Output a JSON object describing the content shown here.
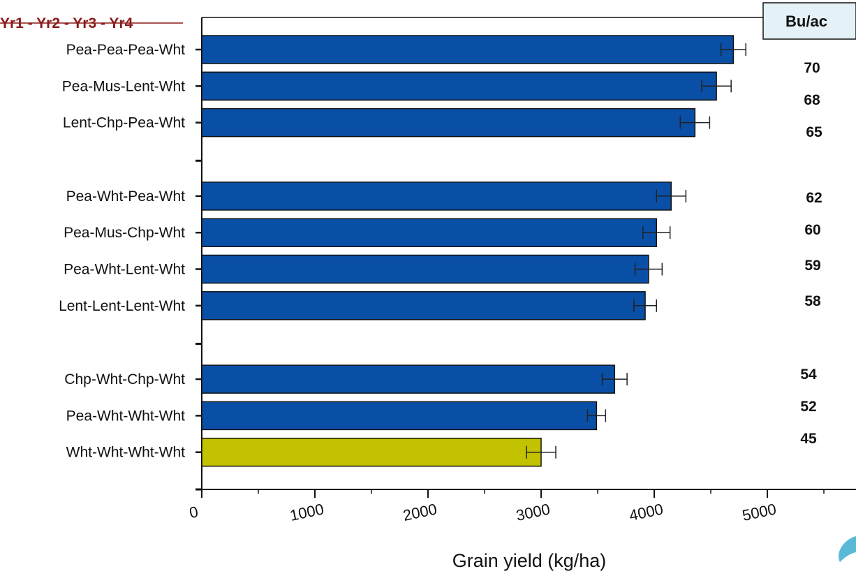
{
  "chart_data": {
    "type": "bar",
    "orientation": "horizontal",
    "header": "Yr1 - Yr2 - Yr3 - Yr4",
    "xlabel": "Grain yield (kg/ha)",
    "xlim": [
      0,
      5700
    ],
    "xticks": [
      0,
      1000,
      2000,
      3000,
      4000,
      5000
    ],
    "categories": [
      "Pea-Pea-Pea-Wht",
      "Pea-Mus-Lent-Wht",
      "Lent-Chp-Pea-Wht",
      "Pea-Wht-Pea-Wht",
      "Pea-Mus-Chp-Wht",
      "Pea-Wht-Lent-Wht",
      "Lent-Lent-Lent-Wht",
      "Chp-Wht-Chp-Wht",
      "Pea-Wht-Wht-Wht",
      "Wht-Wht-Wht-Wht"
    ],
    "groups": [
      0,
      0,
      0,
      1,
      1,
      1,
      1,
      2,
      2,
      2
    ],
    "values": [
      4700,
      4550,
      4360,
      4150,
      4020,
      3950,
      3920,
      3650,
      3490,
      3000
    ],
    "errors": [
      110,
      130,
      130,
      130,
      120,
      120,
      100,
      110,
      80,
      130
    ],
    "bar_colors": [
      "#0a4fa6",
      "#0a4fa6",
      "#0a4fa6",
      "#0a4fa6",
      "#0a4fa6",
      "#0a4fa6",
      "#0a4fa6",
      "#0a4fa6",
      "#0a4fa6",
      "#c3c200"
    ],
    "bu_ac_header": "Bu/ac",
    "bu_ac": [
      "70",
      "68",
      "65",
      "62",
      "60",
      "59",
      "58",
      "54",
      "52",
      "45"
    ]
  }
}
